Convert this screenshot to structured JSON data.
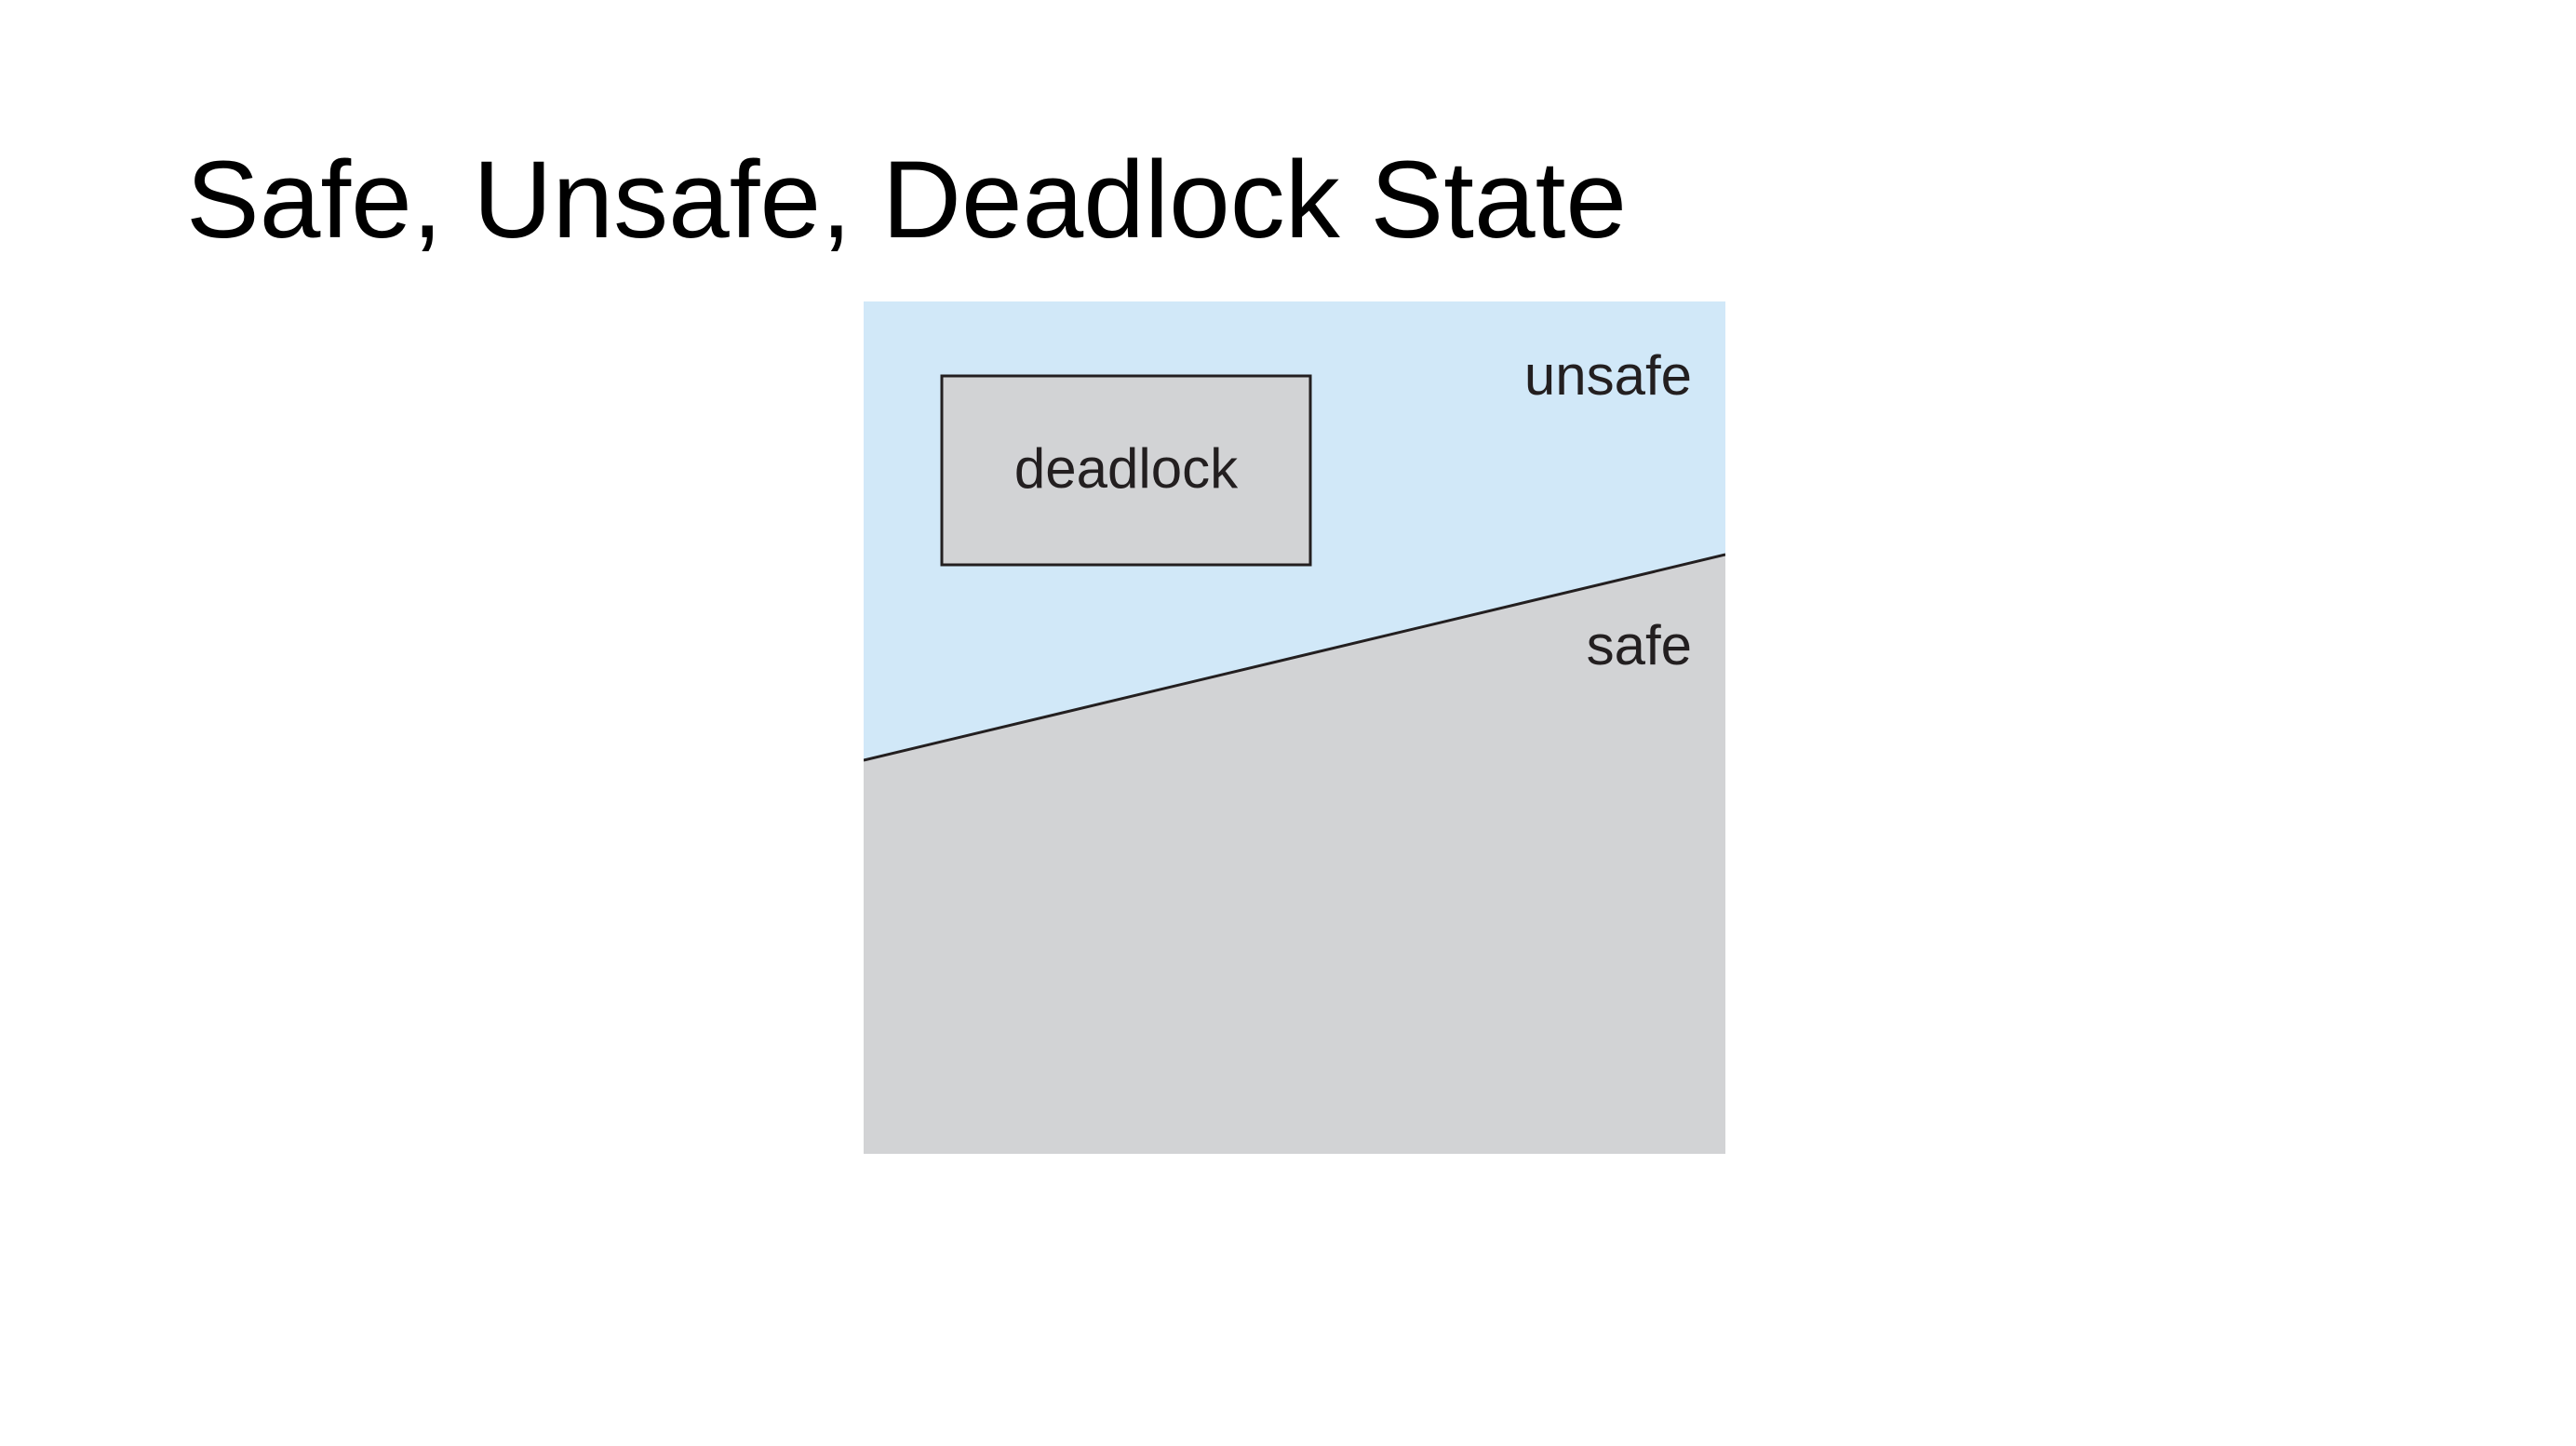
{
  "slide": {
    "title": "Safe, Unsafe, Deadlock State"
  },
  "diagram": {
    "regions": {
      "unsafe_label": "unsafe",
      "safe_label": "safe",
      "deadlock_label": "deadlock"
    },
    "colors": {
      "unsafe_fill": "#d1e8f8",
      "safe_fill": "#d2d3d5",
      "deadlock_fill": "#d2d3d5",
      "outline": "#231f20"
    }
  }
}
